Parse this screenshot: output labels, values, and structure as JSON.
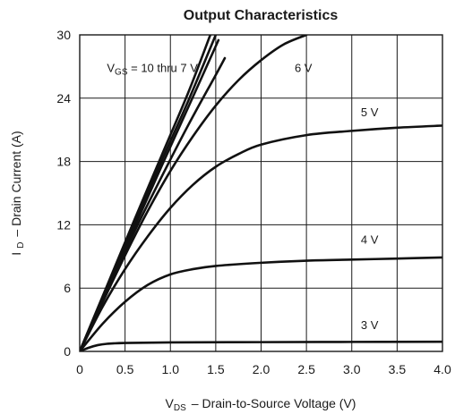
{
  "chart_data": {
    "type": "line",
    "title": "Output Characteristics",
    "xlabel": {
      "prefix": "V",
      "sub": "DS",
      "text": "–  Drain-to-Source Voltage (V)"
    },
    "ylabel": {
      "prefix": "I",
      "sub": "D",
      "text": "–  Drain Current (A)"
    },
    "xlim": [
      0,
      4.0
    ],
    "ylim": [
      0,
      30
    ],
    "x_ticks": [
      0,
      0.5,
      1.0,
      1.5,
      2.0,
      2.5,
      3.0,
      3.5,
      4.0
    ],
    "x_tick_labels": [
      "0",
      "0.5",
      "1.0",
      "1.5",
      "2.0",
      "2.5",
      "3.0",
      "3.5",
      "4.0"
    ],
    "y_ticks": [
      0,
      6,
      12,
      18,
      24,
      30
    ],
    "y_tick_labels": [
      "0",
      "6",
      "12",
      "18",
      "24",
      "30"
    ],
    "grid": true,
    "series": [
      {
        "name": "VGS = 10 thru 7 V",
        "x": [
          0,
          0.3,
          0.6,
          0.9,
          1.2,
          1.44
        ],
        "y": [
          0,
          6.2,
          12.4,
          18.5,
          24.6,
          30
        ]
      },
      {
        "name": "VGS = 10 thru 7 V",
        "x": [
          0,
          0.3,
          0.6,
          0.9,
          1.2,
          1.5
        ],
        "y": [
          0,
          6.0,
          12.0,
          18.0,
          23.8,
          30
        ]
      },
      {
        "name": "VGS = 10 thru 7 V",
        "x": [
          0,
          0.3,
          0.6,
          0.9,
          1.2,
          1.53
        ],
        "y": [
          0,
          5.9,
          11.7,
          17.5,
          23.2,
          29.5
        ]
      },
      {
        "name": "VGS = 10 thru 7 V",
        "x": [
          0,
          0.3,
          0.6,
          0.9,
          1.2,
          1.5,
          1.6
        ],
        "y": [
          0,
          5.8,
          11.3,
          16.5,
          21.5,
          26.2,
          27.8
        ]
      },
      {
        "name": "6 V",
        "x": [
          0,
          0.25,
          0.5,
          0.75,
          1.0,
          1.25,
          1.5,
          1.75,
          2.0,
          2.25,
          2.5
        ],
        "y": [
          0,
          4.6,
          9.1,
          13.3,
          17.1,
          20.4,
          23.3,
          25.7,
          27.6,
          29.1,
          30
        ]
      },
      {
        "name": "5 V",
        "x": [
          0,
          0.25,
          0.5,
          0.75,
          1.0,
          1.25,
          1.5,
          1.75,
          2.0,
          2.5,
          3.0,
          3.5,
          4.0
        ],
        "y": [
          0,
          4.2,
          7.8,
          10.9,
          13.6,
          15.8,
          17.5,
          18.7,
          19.6,
          20.5,
          20.9,
          21.2,
          21.4
        ]
      },
      {
        "name": "4 V",
        "x": [
          0,
          0.25,
          0.5,
          0.75,
          1.0,
          1.25,
          1.5,
          2.0,
          2.5,
          3.0,
          3.5,
          4.0
        ],
        "y": [
          0,
          2.6,
          4.7,
          6.3,
          7.3,
          7.8,
          8.1,
          8.4,
          8.6,
          8.7,
          8.8,
          8.9
        ]
      },
      {
        "name": "3 V",
        "x": [
          0,
          0.1,
          0.2,
          0.3,
          0.5,
          1.0,
          2.0,
          3.0,
          4.0
        ],
        "y": [
          0,
          0.35,
          0.6,
          0.72,
          0.8,
          0.85,
          0.88,
          0.9,
          0.92
        ]
      }
    ],
    "annotations": [
      {
        "prefix": "V",
        "sub": "GS",
        "text": " = 10 thru 7 V",
        "x": 0.3,
        "y": 26.5
      },
      {
        "text": "6 V",
        "x": 2.37,
        "y": 26.5
      },
      {
        "text": "5 V",
        "x": 3.1,
        "y": 22.3
      },
      {
        "text": "4 V",
        "x": 3.1,
        "y": 10.2
      },
      {
        "text": "3 V",
        "x": 3.1,
        "y": 2.1
      }
    ]
  }
}
